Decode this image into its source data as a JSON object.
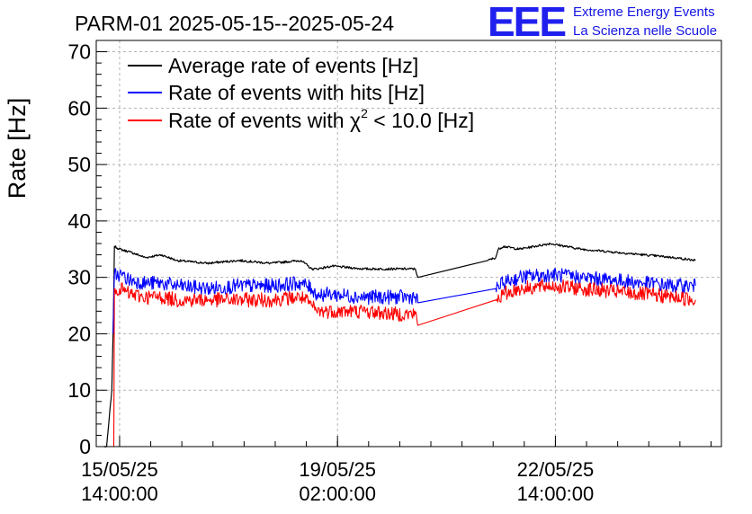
{
  "title": "PARM-01 2025-05-15--2025-05-24",
  "logo": {
    "mark": "EEE",
    "line1": "Extreme Energy Events",
    "line2": "La Scienza nelle Scuole",
    "color": "#2020ee"
  },
  "chart_data": {
    "type": "line",
    "ylabel": "Rate [Hz]",
    "xlabel": "",
    "ylim": [
      0,
      72
    ],
    "yticks": [
      "0",
      "10",
      "20",
      "30",
      "40",
      "50",
      "60",
      "70"
    ],
    "xlim": [
      "2025-05-15 05:00",
      "2025-05-25 06:00"
    ],
    "xtick_labels": [
      {
        "date": "15/05/25",
        "time": "14:00:00",
        "at": "2025-05-15 14:00"
      },
      {
        "date": "19/05/25",
        "time": "02:00:00",
        "at": "2025-05-19 02:00"
      },
      {
        "date": "22/05/25",
        "time": "14:00:00",
        "at": "2025-05-22 14:00"
      }
    ],
    "grid": true,
    "legend_position": "top-left",
    "legend": [
      {
        "label": "Average rate of events [Hz]",
        "color": "#000000"
      },
      {
        "label": "Rate of events with hits [Hz]",
        "color": "#0000ff"
      },
      {
        "label_pre": "Rate of events with ",
        "label_chi": "χ",
        "label_sup": "2",
        "label_post": " < 10.0 [Hz]",
        "color": "#ff0000"
      }
    ],
    "series": [
      {
        "name": "Average rate of events [Hz]",
        "color": "#000000",
        "noise": 0.4,
        "x": [
          "2025-05-15 08:00",
          "2025-05-15 09:00",
          "2025-05-15 10:00",
          "2025-05-15 11:00",
          "2025-05-15 11:30",
          "2025-05-15 12:00",
          "2025-05-15 14:00",
          "2025-05-15 18:00",
          "2025-05-16 00:00",
          "2025-05-16 06:00",
          "2025-05-16 12:00",
          "2025-05-17 00:00",
          "2025-05-17 12:00",
          "2025-05-18 00:00",
          "2025-05-18 12:00",
          "2025-05-18 16:00",
          "2025-05-18 18:00",
          "2025-05-19 00:00",
          "2025-05-19 12:00",
          "2025-05-20 00:00",
          "2025-05-20 08:00",
          "2025-05-20 09:00",
          "2025-05-21 12:00",
          "2025-05-21 15:00",
          "2025-05-21 16:00",
          "2025-05-21 18:00",
          "2025-05-22 00:00",
          "2025-05-22 12:00",
          "2025-05-23 00:00",
          "2025-05-23 12:00",
          "2025-05-24 00:00",
          "2025-05-24 12:00",
          "2025-05-24 20:00"
        ],
        "y": [
          0,
          0,
          5,
          10,
          20,
          35.5,
          35,
          34.5,
          33.5,
          34,
          33,
          32.5,
          33,
          32.5,
          33,
          31.5,
          31.5,
          32,
          31.5,
          31.5,
          31.5,
          30,
          33,
          33.5,
          35,
          35.5,
          35,
          36,
          35,
          34.5,
          34,
          33.5,
          33
        ]
      },
      {
        "name": "Rate of events with hits [Hz]",
        "color": "#0000ff",
        "noise": 2.6,
        "x": [
          "2025-05-15 11:30",
          "2025-05-15 12:00",
          "2025-05-15 14:00",
          "2025-05-15 18:00",
          "2025-05-16 00:00",
          "2025-05-16 06:00",
          "2025-05-16 12:00",
          "2025-05-17 00:00",
          "2025-05-17 12:00",
          "2025-05-18 00:00",
          "2025-05-18 12:00",
          "2025-05-18 16:00",
          "2025-05-18 18:00",
          "2025-05-19 00:00",
          "2025-05-19 12:00",
          "2025-05-20 00:00",
          "2025-05-20 08:00",
          "2025-05-20 09:00",
          "2025-05-21 15:00",
          "2025-05-21 18:00",
          "2025-05-22 00:00",
          "2025-05-22 12:00",
          "2025-05-23 00:00",
          "2025-05-23 12:00",
          "2025-05-24 00:00",
          "2025-05-24 12:00",
          "2025-05-24 20:00"
        ],
        "y": [
          20,
          30.5,
          30.5,
          29.5,
          29,
          29,
          28.5,
          28,
          28.5,
          28.5,
          29,
          28,
          27,
          27,
          26.5,
          26.5,
          26.5,
          25.5,
          28,
          29,
          30,
          30.5,
          30,
          29.5,
          29,
          28.5,
          28.5
        ]
      },
      {
        "name": "Rate of events with χ2 < 10.0 [Hz]",
        "color": "#ff0000",
        "noise": 2.6,
        "x": [
          "2025-05-15 11:30",
          "2025-05-15 11:45",
          "2025-05-15 12:00",
          "2025-05-15 14:00",
          "2025-05-15 18:00",
          "2025-05-16 00:00",
          "2025-05-16 06:00",
          "2025-05-16 12:00",
          "2025-05-17 00:00",
          "2025-05-17 12:00",
          "2025-05-18 00:00",
          "2025-05-18 12:00",
          "2025-05-18 16:00",
          "2025-05-18 18:00",
          "2025-05-19 00:00",
          "2025-05-19 12:00",
          "2025-05-20 00:00",
          "2025-05-20 08:00",
          "2025-05-20 09:00",
          "2025-05-21 15:00",
          "2025-05-21 18:00",
          "2025-05-22 00:00",
          "2025-05-22 12:00",
          "2025-05-23 00:00",
          "2025-05-23 12:00",
          "2025-05-24 00:00",
          "2025-05-24 12:00",
          "2025-05-24 20:00"
        ],
        "y": [
          0,
          0,
          28,
          28,
          27,
          26.5,
          26.5,
          26,
          26,
          26,
          26,
          26.5,
          25,
          24,
          24,
          24,
          23.5,
          23.5,
          21.5,
          26,
          27,
          28,
          28.5,
          28,
          27.5,
          27,
          26.5,
          26
        ]
      }
    ]
  }
}
